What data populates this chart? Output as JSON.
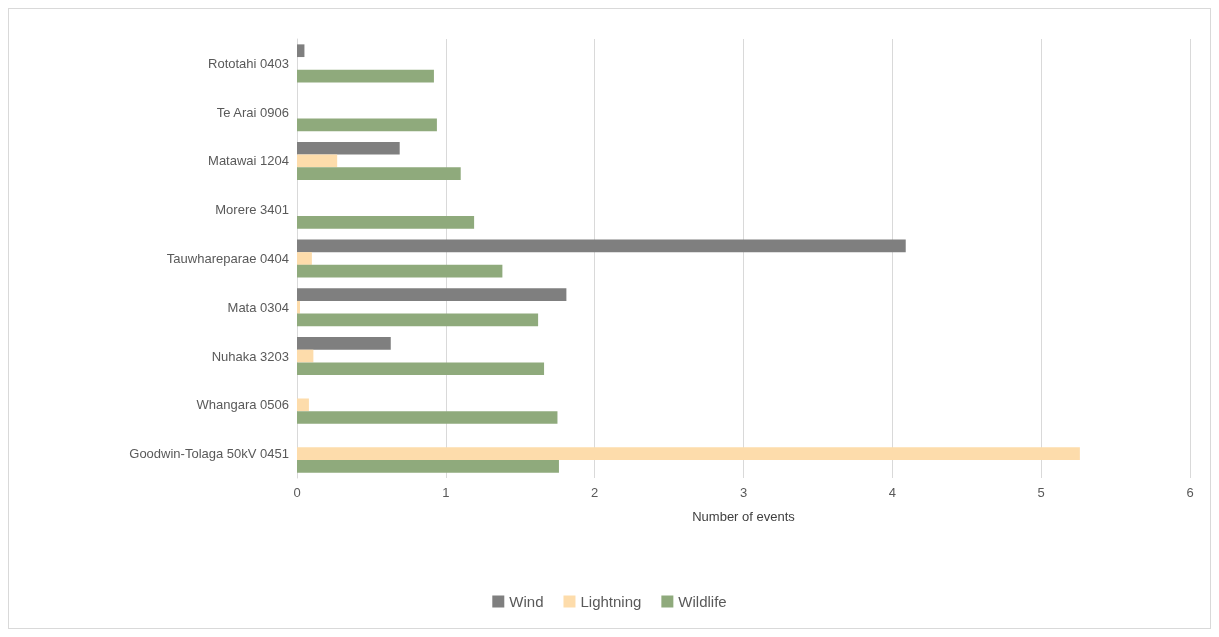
{
  "chart_data": {
    "type": "bar",
    "orientation": "horizontal",
    "xlabel": "Number of events",
    "categories": [
      "Rototahi 0403",
      "Te Arai 0906",
      "Matawai 1204",
      "Morere 3401",
      "Tauwhareparae 0404",
      "Mata 0304",
      "Nuhaka 3203",
      "Whangara 0506",
      "Goodwin-Tolaga 50kV 0451"
    ],
    "series": [
      {
        "name": "Wind",
        "color": "#7f7f7f",
        "values": [
          0.05,
          0,
          0.69,
          0,
          4.09,
          1.81,
          0.63,
          0,
          0
        ]
      },
      {
        "name": "Lightning",
        "color": "#fddcab",
        "values": [
          null,
          null,
          0.27,
          0,
          0.1,
          0.02,
          0.11,
          0.08,
          5.26
        ]
      },
      {
        "name": "Wildlife",
        "color": "#8faa7c",
        "values": [
          0.92,
          0.94,
          1.1,
          1.19,
          1.38,
          1.62,
          1.66,
          1.75,
          1.76
        ]
      }
    ],
    "xlim": [
      0,
      6
    ],
    "xticks": [
      0,
      1,
      2,
      3,
      4,
      5,
      6
    ],
    "grid": "x",
    "legend": "bottom"
  }
}
